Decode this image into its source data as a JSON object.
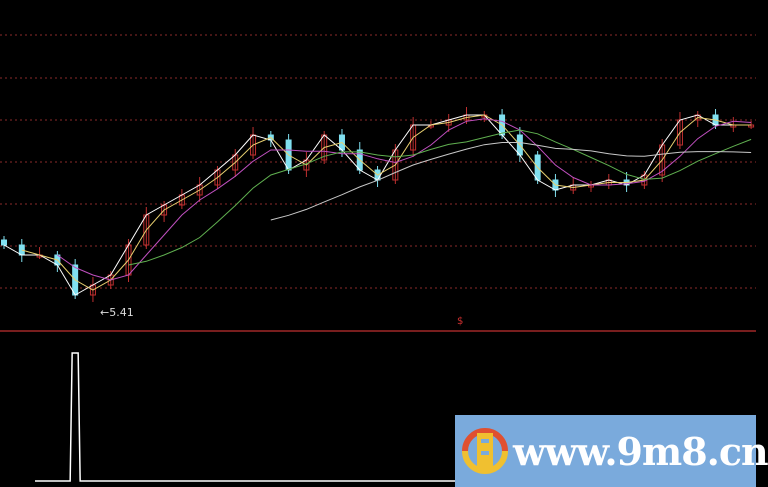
{
  "chart_data": {
    "type": "candlestick",
    "title": "",
    "low_annotation": "←5.41",
    "marker": "$",
    "close": [
      5.96,
      5.86,
      5.86,
      5.76,
      5.46,
      5.56,
      5.66,
      5.96,
      6.26,
      6.36,
      6.46,
      6.56,
      6.71,
      6.86,
      7.06,
      7.01,
      6.71,
      6.81,
      7.06,
      6.91,
      6.71,
      6.61,
      6.91,
      7.16,
      7.16,
      7.21,
      7.26,
      7.26,
      7.06,
      6.86,
      6.61,
      6.51,
      6.56,
      6.56,
      6.61,
      6.56,
      6.66,
      6.96,
      7.21,
      7.26,
      7.16,
      7.16,
      7.16
    ],
    "moving_averages": [
      {
        "period": 5,
        "color": "#ffffff"
      },
      {
        "period": 10,
        "color": "#e8d070"
      },
      {
        "period": 20,
        "color": "#c050c0"
      },
      {
        "period": 40,
        "color": "#60b050"
      },
      {
        "period": 80,
        "color": "#c8c8c8"
      }
    ],
    "up_color": "#c03030",
    "down_color": "#80e0f0",
    "indicator": {
      "type": "spike",
      "baseline": 0,
      "peak": 1,
      "peak_index": 4
    }
  },
  "watermark": {
    "text": "www.9m8.cn",
    "bg": "#7aaadc"
  }
}
